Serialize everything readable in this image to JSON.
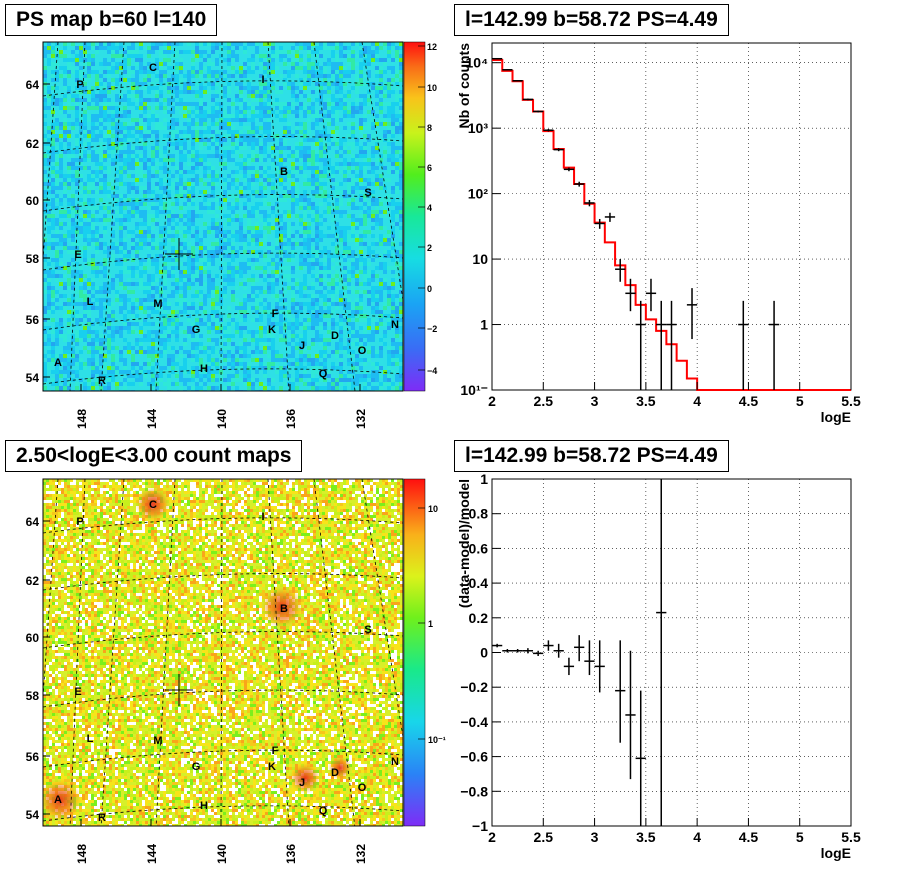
{
  "panels": {
    "ps_map": {
      "title": "PS map b=60 l=140",
      "x_ticks": [
        "148",
        "144",
        "140",
        "136",
        "132"
      ],
      "y_ticks": [
        "64",
        "62",
        "60",
        "58",
        "56",
        "54"
      ],
      "colorbar_ticks": [
        "12",
        "10",
        "8",
        "6",
        "4",
        "2",
        "0",
        "−2",
        "−4"
      ]
    },
    "count_map": {
      "title": "2.50<logE<3.00 count maps",
      "x_ticks": [
        "148",
        "144",
        "140",
        "136",
        "132"
      ],
      "y_ticks": [
        "64",
        "62",
        "60",
        "58",
        "56",
        "54"
      ],
      "colorbar_ticks": [
        "10",
        "1",
        "10⁻¹"
      ]
    },
    "spectrum": {
      "title": "l=142.99 b=58.72 PS=4.49"
    },
    "residual": {
      "title": "l=142.99 b=58.72 PS=4.49"
    }
  },
  "source_labels": [
    "C",
    "I",
    "P",
    "B",
    "S",
    "E",
    "L",
    "M",
    "F",
    "K",
    "G",
    "J",
    "D",
    "O",
    "N",
    "A",
    "H",
    "Q",
    "R"
  ],
  "chart_data": [
    {
      "type": "line",
      "title": "l=142.99 b=58.72 PS=4.49",
      "xlabel": "logE",
      "ylabel": "Nb of counts",
      "xlim": [
        2,
        5.5
      ],
      "ylim": [
        0.1,
        20000
      ],
      "log_y": true,
      "grid": true,
      "x_ticks": [
        "2",
        "2.5",
        "3",
        "3.5",
        "4",
        "4.5",
        "5",
        "5.5"
      ],
      "y_ticks": [
        "10¹⁻",
        "1",
        "10",
        "10²",
        "10³",
        "10⁴"
      ],
      "series": [
        {
          "role": "model",
          "color": "#ff0000",
          "style": "step",
          "edges": [
            2,
            2.1,
            2.2,
            2.3,
            2.4,
            2.5,
            2.6,
            2.7,
            2.8,
            2.9,
            3.0,
            3.1,
            3.2,
            3.3,
            3.4,
            3.5,
            3.6,
            3.7,
            3.8,
            3.9,
            4.0,
            5.5
          ],
          "values": [
            11000,
            7500,
            5200,
            2700,
            1800,
            900,
            480,
            250,
            140,
            70,
            36,
            18,
            8,
            4,
            2,
            1.2,
            0.8,
            0.5,
            0.28,
            0.15,
            0.1
          ]
        },
        {
          "role": "data",
          "color": "#000000",
          "points": [
            {
              "x": 2.05,
              "y": 11500,
              "lo": 11300,
              "hi": 11700
            },
            {
              "x": 2.15,
              "y": 7800,
              "lo": 7650,
              "hi": 7950
            },
            {
              "x": 2.25,
              "y": 5300,
              "lo": 5180,
              "hi": 5420
            },
            {
              "x": 2.35,
              "y": 2750,
              "lo": 2670,
              "hi": 2830
            },
            {
              "x": 2.45,
              "y": 1800,
              "lo": 1740,
              "hi": 1860
            },
            {
              "x": 2.55,
              "y": 930,
              "lo": 890,
              "hi": 970
            },
            {
              "x": 2.65,
              "y": 470,
              "lo": 445,
              "hi": 495
            },
            {
              "x": 2.75,
              "y": 235,
              "lo": 220,
              "hi": 250
            },
            {
              "x": 2.85,
              "y": 140,
              "lo": 128,
              "hi": 152
            },
            {
              "x": 2.95,
              "y": 72,
              "lo": 64,
              "hi": 80
            },
            {
              "x": 3.05,
              "y": 35,
              "lo": 29,
              "hi": 41
            },
            {
              "x": 3.15,
              "y": 44,
              "lo": 37,
              "hi": 51
            },
            {
              "x": 3.25,
              "y": 7,
              "lo": 4.5,
              "hi": 10
            },
            {
              "x": 3.35,
              "y": 3,
              "lo": 1.6,
              "hi": 5
            },
            {
              "x": 3.45,
              "y": 1,
              "lo": 0.1,
              "hi": 2.3
            },
            {
              "x": 3.55,
              "y": 3,
              "lo": 1.6,
              "hi": 5
            },
            {
              "x": 3.65,
              "y": 1,
              "lo": 0.1,
              "hi": 2.3
            },
            {
              "x": 3.75,
              "y": 1,
              "lo": 0.1,
              "hi": 2.3
            },
            {
              "x": 3.95,
              "y": 2,
              "lo": 0.6,
              "hi": 3.6
            },
            {
              "x": 4.45,
              "y": 1,
              "lo": 0.1,
              "hi": 2.3
            },
            {
              "x": 4.75,
              "y": 1,
              "lo": 0.1,
              "hi": 2.3
            }
          ]
        }
      ]
    },
    {
      "type": "scatter",
      "title": "l=142.99 b=58.72 PS=4.49",
      "xlabel": "logE",
      "ylabel": "(data-model)/model",
      "xlim": [
        2,
        5.5
      ],
      "ylim": [
        -1,
        1
      ],
      "grid": true,
      "x_ticks": [
        "2",
        "2.5",
        "3",
        "3.5",
        "4",
        "4.5",
        "5",
        "5.5"
      ],
      "y_ticks": [
        "−1",
        "−0.8",
        "−0.6",
        "−0.4",
        "−0.2",
        "0",
        "0.2",
        "0.4",
        "0.6",
        "0.8",
        "1"
      ],
      "series": [
        {
          "role": "data",
          "color": "#000000",
          "points": [
            {
              "x": 2.05,
              "y": 0.04,
              "lo": 0.03,
              "hi": 0.05
            },
            {
              "x": 2.15,
              "y": 0.01,
              "lo": 0.0,
              "hi": 0.02
            },
            {
              "x": 2.25,
              "y": 0.01,
              "lo": 0.0,
              "hi": 0.02
            },
            {
              "x": 2.35,
              "y": 0.01,
              "lo": -0.005,
              "hi": 0.025
            },
            {
              "x": 2.45,
              "y": -0.005,
              "lo": -0.02,
              "hi": 0.01
            },
            {
              "x": 2.55,
              "y": 0.04,
              "lo": 0.01,
              "hi": 0.07
            },
            {
              "x": 2.65,
              "y": 0.01,
              "lo": -0.03,
              "hi": 0.05
            },
            {
              "x": 2.75,
              "y": -0.08,
              "lo": -0.13,
              "hi": -0.03
            },
            {
              "x": 2.85,
              "y": 0.03,
              "lo": -0.05,
              "hi": 0.1
            },
            {
              "x": 2.95,
              "y": -0.05,
              "lo": -0.13,
              "hi": 0.07
            },
            {
              "x": 3.05,
              "y": -0.08,
              "lo": -0.23,
              "hi": 0.07
            },
            {
              "x": 3.25,
              "y": -0.22,
              "lo": -0.52,
              "hi": 0.07
            },
            {
              "x": 3.35,
              "y": -0.36,
              "lo": -0.73,
              "hi": 0.01
            },
            {
              "x": 3.45,
              "y": -0.61,
              "lo": -1.0,
              "hi": -0.22
            },
            {
              "x": 3.65,
              "y": 0.23,
              "lo": -1.0,
              "hi": 1.0
            }
          ]
        }
      ]
    }
  ]
}
